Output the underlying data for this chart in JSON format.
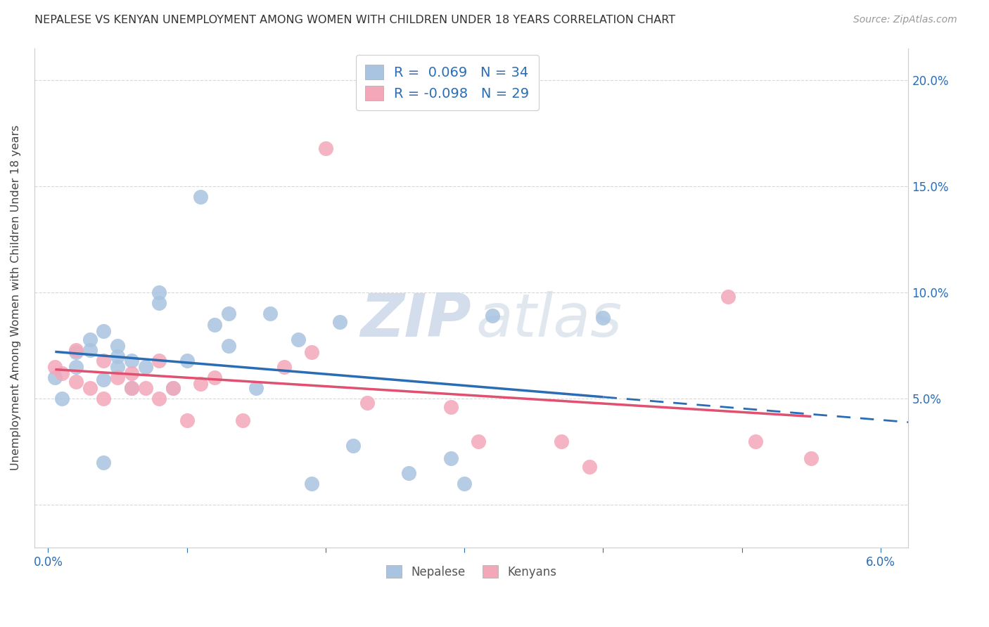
{
  "title": "NEPALESE VS KENYAN UNEMPLOYMENT AMONG WOMEN WITH CHILDREN UNDER 18 YEARS CORRELATION CHART",
  "source": "Source: ZipAtlas.com",
  "ylabel": "Unemployment Among Women with Children Under 18 years",
  "xlim": [
    -0.001,
    0.062
  ],
  "ylim": [
    -0.02,
    0.215
  ],
  "yticks": [
    0.0,
    0.05,
    0.1,
    0.15,
    0.2
  ],
  "ytick_labels": [
    "",
    "5.0%",
    "10.0%",
    "15.0%",
    "20.0%"
  ],
  "xticks": [
    0.0,
    0.01,
    0.02,
    0.03,
    0.04,
    0.05,
    0.06
  ],
  "xtick_labels": [
    "0.0%",
    "",
    "",
    "",
    "",
    "",
    "6.0%"
  ],
  "r_nepalese": 0.069,
  "n_nepalese": 34,
  "r_kenyans": -0.098,
  "n_kenyans": 29,
  "nepalese_color": "#a8c4e0",
  "kenyan_color": "#f4a7b9",
  "nepalese_line_color": "#2a6db5",
  "kenyan_line_color": "#e05070",
  "nepalese_x": [
    0.0005,
    0.001,
    0.002,
    0.002,
    0.003,
    0.003,
    0.004,
    0.004,
    0.004,
    0.005,
    0.005,
    0.005,
    0.006,
    0.006,
    0.007,
    0.008,
    0.008,
    0.009,
    0.01,
    0.011,
    0.012,
    0.013,
    0.013,
    0.015,
    0.016,
    0.018,
    0.019,
    0.021,
    0.022,
    0.026,
    0.029,
    0.03,
    0.032,
    0.04
  ],
  "nepalese_y": [
    0.06,
    0.05,
    0.072,
    0.065,
    0.073,
    0.078,
    0.082,
    0.059,
    0.02,
    0.065,
    0.07,
    0.075,
    0.068,
    0.055,
    0.065,
    0.095,
    0.1,
    0.055,
    0.068,
    0.145,
    0.085,
    0.09,
    0.075,
    0.055,
    0.09,
    0.078,
    0.01,
    0.086,
    0.028,
    0.015,
    0.022,
    0.01,
    0.089,
    0.088
  ],
  "kenyan_x": [
    0.0005,
    0.001,
    0.002,
    0.002,
    0.003,
    0.004,
    0.004,
    0.005,
    0.006,
    0.006,
    0.007,
    0.008,
    0.008,
    0.009,
    0.01,
    0.011,
    0.012,
    0.014,
    0.017,
    0.019,
    0.02,
    0.023,
    0.029,
    0.031,
    0.037,
    0.039,
    0.049,
    0.051,
    0.055
  ],
  "kenyan_y": [
    0.065,
    0.062,
    0.058,
    0.073,
    0.055,
    0.068,
    0.05,
    0.06,
    0.062,
    0.055,
    0.055,
    0.068,
    0.05,
    0.055,
    0.04,
    0.057,
    0.06,
    0.04,
    0.065,
    0.072,
    0.168,
    0.048,
    0.046,
    0.03,
    0.03,
    0.018,
    0.098,
    0.03,
    0.022
  ],
  "watermark_zip": "ZIP",
  "watermark_atlas": "atlas",
  "background_color": "#ffffff",
  "grid_color": "#d8d8d8"
}
